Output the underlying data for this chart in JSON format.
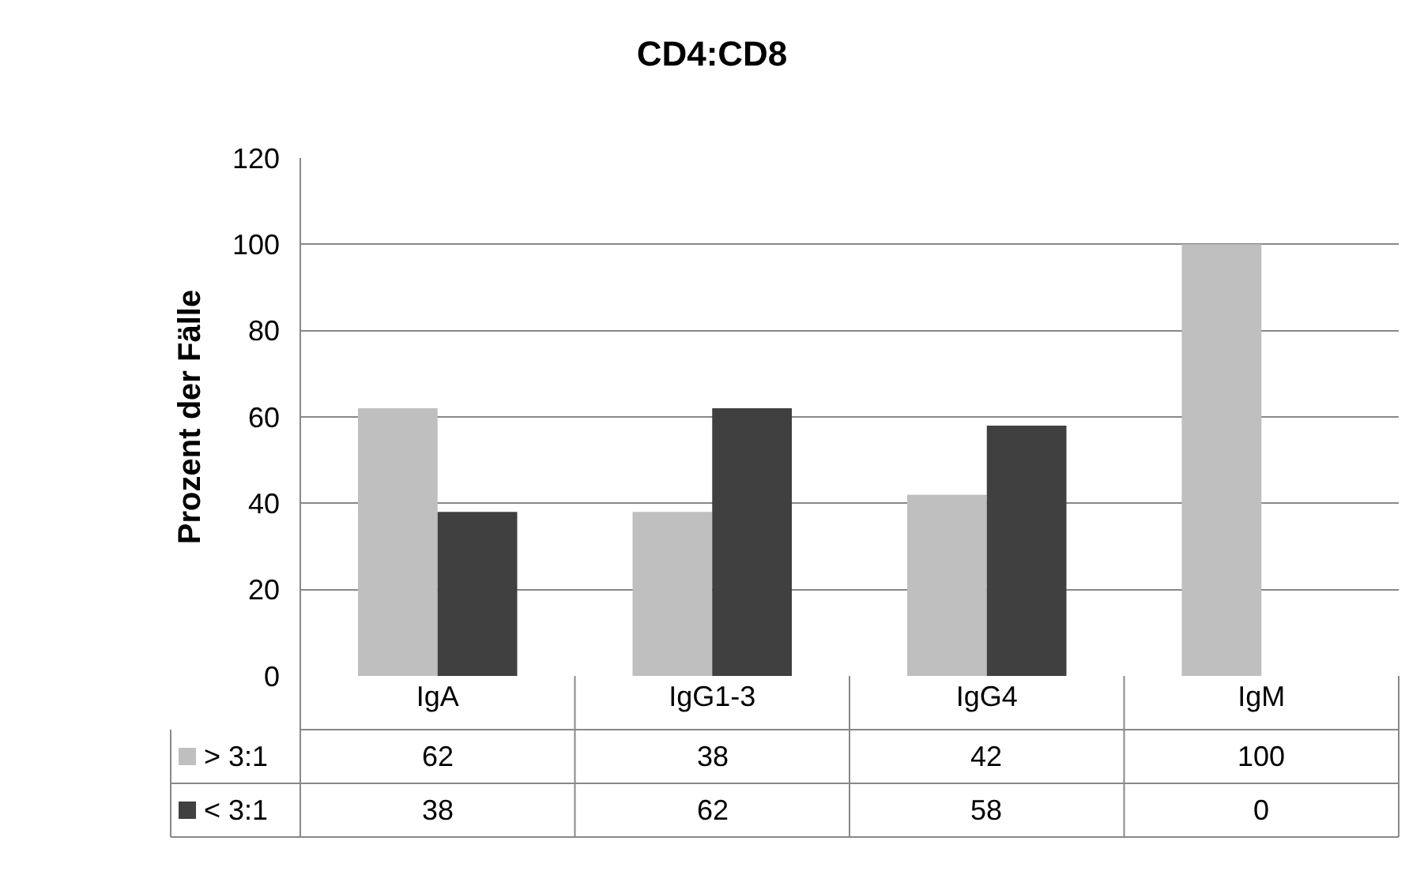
{
  "chart_data": {
    "type": "bar",
    "title": "CD4:CD8",
    "ylabel": "Prozent der Fälle",
    "categories": [
      "IgA",
      "IgG1-3",
      "IgG4",
      "IgM"
    ],
    "series": [
      {
        "name": "> 3:1",
        "color": "#bfbfbf",
        "values": [
          62,
          38,
          42,
          100
        ]
      },
      {
        "name": "< 3:1",
        "color": "#404040",
        "values": [
          38,
          62,
          58,
          0
        ]
      }
    ],
    "ylim": [
      0,
      120
    ],
    "yticks": [
      0,
      20,
      40,
      60,
      80,
      100,
      120
    ],
    "grid": "y",
    "legend": "bottom",
    "data_labels": true
  }
}
